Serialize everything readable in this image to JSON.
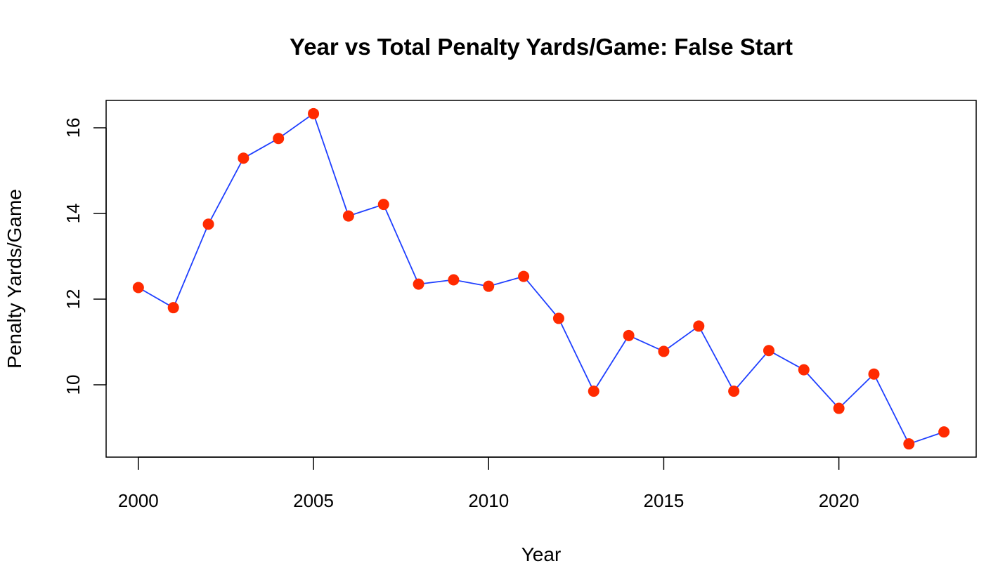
{
  "chart_data": {
    "type": "line",
    "title": "Year vs Total Penalty Yards/Game: False Start",
    "xlabel": "Year",
    "ylabel": "Penalty Yards/Game",
    "xlim": [
      2000,
      2023
    ],
    "ylim": [
      8.62,
      16.33
    ],
    "x_ticks": [
      2000,
      2005,
      2010,
      2015,
      2020
    ],
    "y_ticks": [
      10,
      12,
      14,
      16
    ],
    "grid": false,
    "legend": "none",
    "colors": {
      "line": "#1f3fff",
      "points": "#ff2a00"
    },
    "series": [
      {
        "x": [
          2000,
          2001,
          2002,
          2003,
          2004,
          2005,
          2006,
          2007,
          2008,
          2009,
          2010,
          2011,
          2012,
          2013,
          2014,
          2015,
          2016,
          2017,
          2018,
          2019,
          2020,
          2021,
          2022,
          2023
        ],
        "values": [
          12.27,
          11.8,
          13.75,
          15.29,
          15.75,
          16.33,
          13.94,
          14.21,
          12.35,
          12.45,
          12.3,
          12.53,
          11.55,
          9.85,
          11.15,
          10.78,
          11.37,
          9.85,
          10.8,
          10.35,
          9.45,
          10.25,
          8.62,
          8.9
        ]
      }
    ]
  }
}
